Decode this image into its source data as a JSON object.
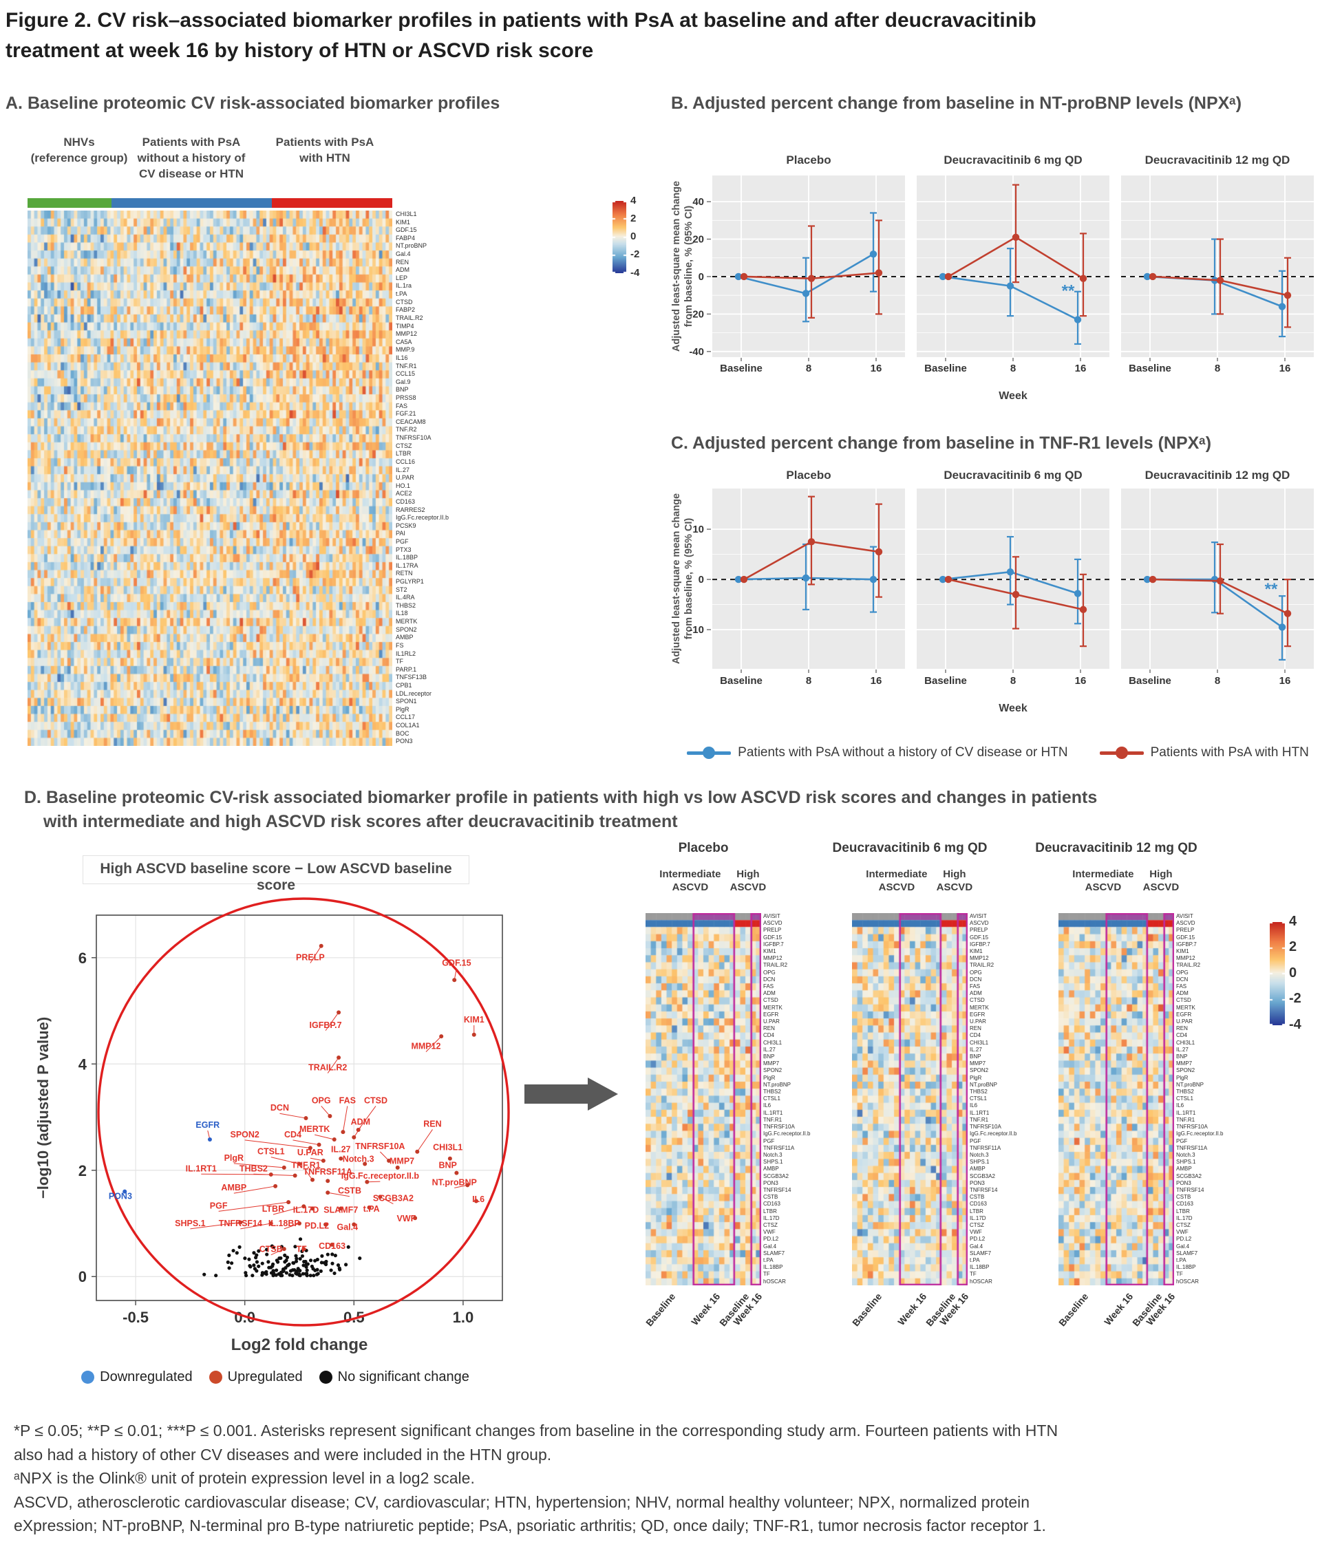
{
  "figure": {
    "title_line1": "Figure 2. CV risk–associated biomarker profiles in patients with PsA at baseline and after deucravacitinib",
    "title_line2": "treatment at week 16 by history of HTN or ASCVD risk score"
  },
  "panel_a": {
    "title": "A. Baseline proteomic CV risk-associated biomarker profiles",
    "groups": [
      {
        "label_lines": [
          "NHVs",
          "(reference group)"
        ],
        "color": "#56a73c",
        "frac": 0.23,
        "bias": -0.3
      },
      {
        "label_lines": [
          "Patients with PsA",
          "without a history of",
          "CV disease or HTN"
        ],
        "color": "#3c79b6",
        "frac": 0.44,
        "bias": 0.0
      },
      {
        "label_lines": [
          "Patients with PsA",
          "with HTN"
        ],
        "color": "#da231e",
        "frac": 0.33,
        "bias": 0.45
      }
    ],
    "n_cols": 110,
    "row_labels": [
      "CHI3L1",
      "KIM1",
      "GDF.15",
      "FABP4",
      "NT.proBNP",
      "Gal.4",
      "REN",
      "ADM",
      "LEP",
      "IL.1ra",
      "t.PA",
      "CTSD",
      "FABP2",
      "TRAIL.R2",
      "TIMP4",
      "MMP12",
      "CA5A",
      "MMP.9",
      "IL16",
      "TNF.R1",
      "CCL15",
      "Gal.9",
      "BNP",
      "PRSS8",
      "FAS",
      "FGF.21",
      "CEACAM8",
      "TNF.R2",
      "TNFRSF10A",
      "CTSZ",
      "LTBR",
      "CCL16",
      "IL.27",
      "U.PAR",
      "HO.1",
      "ACE2",
      "CD163",
      "RARRES2",
      "IgG.Fc.receptor.II.b",
      "PCSK9",
      "PAI",
      "PGF",
      "PTX3",
      "IL.18BP",
      "IL.17RA",
      "RETN",
      "PGLYRP1",
      "ST2",
      "IL.4RA",
      "THBS2",
      "IL18",
      "MERTK",
      "SPON2",
      "AMBP",
      "FS",
      "IL1RL2",
      "TF",
      "PARP.1",
      "TNFSF13B",
      "CPB1",
      "LDL.receptor",
      "SPON1",
      "PlgR",
      "CCL17",
      "COL1A1",
      "BOC",
      "PON3"
    ],
    "colorbar_ticks": [
      "4",
      "2",
      "0",
      "-2",
      "-4"
    ]
  },
  "chart_data": [
    {
      "id": "panel_b",
      "type": "line",
      "title": "B. Adjusted percent change from baseline in NT-proBNP levels (NPXᵃ)",
      "facets": [
        "Placebo",
        "Deucravacitinib 6 mg QD",
        "Deucravacitinib 12 mg QD"
      ],
      "x_categories": [
        "Baseline",
        "8",
        "16"
      ],
      "xlabel": "Week",
      "ylabel_lines": [
        "Adjusted least-square mean change",
        "from baseline, % (95% CI)"
      ],
      "ylim": [
        -43,
        54
      ],
      "yticks": [
        40,
        20,
        0,
        -20,
        -40
      ],
      "series": [
        {
          "name": "Patients with PsA without a history of CV disease or HTN",
          "color": "#3f8ec9",
          "facets": [
            {
              "y": [
                0,
                -9,
                12
              ],
              "lo": [
                0,
                -24,
                -8
              ],
              "hi": [
                0,
                10,
                34
              ]
            },
            {
              "y": [
                0,
                -5,
                -23
              ],
              "lo": [
                0,
                -21,
                -36
              ],
              "hi": [
                0,
                15,
                -8
              ]
            },
            {
              "y": [
                0,
                -2,
                -16
              ],
              "lo": [
                0,
                -20,
                -32
              ],
              "hi": [
                0,
                20,
                3
              ]
            }
          ]
        },
        {
          "name": "Patients with PsA with HTN",
          "color": "#c1402f",
          "facets": [
            {
              "y": [
                0,
                -1,
                2
              ],
              "lo": [
                0,
                -22,
                -20
              ],
              "hi": [
                0,
                27,
                30
              ]
            },
            {
              "y": [
                0,
                21,
                -1
              ],
              "lo": [
                0,
                -3,
                -21
              ],
              "hi": [
                0,
                49,
                23
              ]
            },
            {
              "y": [
                0,
                -2,
                -10
              ],
              "lo": [
                0,
                -20,
                -27
              ],
              "hi": [
                0,
                20,
                10
              ]
            }
          ]
        }
      ],
      "annotations": [
        {
          "facet": 1,
          "xi": 2,
          "y": -10.5,
          "dx": -18,
          "text": "**",
          "color": "#3f8ec9"
        }
      ]
    },
    {
      "id": "panel_c",
      "type": "line",
      "title": "C. Adjusted percent change from baseline in TNF-R1 levels (NPXᵃ)",
      "facets": [
        "Placebo",
        "Deucravacitinib 6 mg QD",
        "Deucravacitinib 12 mg QD"
      ],
      "x_categories": [
        "Baseline",
        "8",
        "16"
      ],
      "xlabel": "Week",
      "ylabel_lines": [
        "Adjusted least-square mean change",
        "from baseline, % (95% CI)"
      ],
      "ylim": [
        -17.8,
        18.1
      ],
      "yticks": [
        10,
        0,
        -10
      ],
      "series": [
        {
          "name": "Patients with PsA without a history of CV disease or HTN",
          "color": "#3f8ec9",
          "facets": [
            {
              "y": [
                0,
                0.3,
                0
              ],
              "lo": [
                0,
                -6,
                -6.5
              ],
              "hi": [
                0,
                7,
                6.5
              ]
            },
            {
              "y": [
                0,
                1.5,
                -2.8
              ],
              "lo": [
                0,
                -5,
                -8.8
              ],
              "hi": [
                0,
                8.5,
                4
              ]
            },
            {
              "y": [
                0,
                0,
                -9.5
              ],
              "lo": [
                0,
                -6.6,
                -16
              ],
              "hi": [
                0,
                7.4,
                -3.3
              ]
            }
          ]
        },
        {
          "name": "Patients with PsA with HTN",
          "color": "#c1402f",
          "facets": [
            {
              "y": [
                0,
                7.5,
                5.5
              ],
              "lo": [
                0,
                -1,
                -3.5
              ],
              "hi": [
                0,
                16.5,
                15
              ]
            },
            {
              "y": [
                0,
                -3,
                -6
              ],
              "lo": [
                0,
                -9.8,
                -13.3
              ],
              "hi": [
                0,
                4.5,
                1
              ]
            },
            {
              "y": [
                0,
                -0.3,
                -6.8
              ],
              "lo": [
                0,
                -6.8,
                -13.3
              ],
              "hi": [
                0,
                7,
                0
              ]
            }
          ]
        }
      ],
      "annotations": [
        {
          "facet": 2,
          "xi": 2,
          "y": -3.0,
          "dx": -20,
          "text": "**",
          "color": "#3f8ec9"
        }
      ]
    },
    {
      "id": "volcano",
      "type": "scatter",
      "title": "High ASCVD baseline score − Low ASCVD baseline score",
      "xlabel": "Log2 fold change",
      "ylabel": "−log10 (adjusted P value)",
      "xlim": [
        -0.68,
        1.18
      ],
      "ylim": [
        -0.45,
        6.8
      ],
      "xticks": [
        "-0.5",
        "0.0",
        "0.5",
        "1.0"
      ],
      "xtick_vals": [
        -0.5,
        0.0,
        0.5,
        1.0
      ],
      "yticks": [
        "0",
        "2",
        "4",
        "6"
      ],
      "ytick_vals": [
        0,
        2,
        4,
        6
      ],
      "legend": [
        {
          "label": "Downregulated",
          "color": "#4a90d9"
        },
        {
          "label": "Upregulated",
          "color": "#cc4a2a"
        },
        {
          "label": "No significant change",
          "color": "#111111"
        }
      ],
      "n_background": 135,
      "points": [
        {
          "n": "PRELP",
          "x": 0.35,
          "y": 6.22,
          "lx": 0.3,
          "ly": 5.95,
          "g": "up"
        },
        {
          "n": "GDF.15",
          "x": 0.96,
          "y": 5.58,
          "lx": 0.97,
          "ly": 5.85,
          "g": "up"
        },
        {
          "n": "IGFBP.7",
          "x": 0.43,
          "y": 4.97,
          "lx": 0.37,
          "ly": 4.68,
          "g": "up"
        },
        {
          "n": "KIM1",
          "x": 1.05,
          "y": 4.55,
          "lx": 1.05,
          "ly": 4.78,
          "g": "up"
        },
        {
          "n": "MMP12",
          "x": 0.9,
          "y": 4.52,
          "lx": 0.83,
          "ly": 4.28,
          "g": "up"
        },
        {
          "n": "TRAIL.R2",
          "x": 0.43,
          "y": 4.12,
          "lx": 0.38,
          "ly": 3.88,
          "g": "up"
        },
        {
          "n": "DCN",
          "x": 0.28,
          "y": 2.98,
          "lx": 0.16,
          "ly": 3.12,
          "g": "up"
        },
        {
          "n": "OPG",
          "x": 0.39,
          "y": 3.02,
          "lx": 0.35,
          "ly": 3.26,
          "g": "up"
        },
        {
          "n": "FAS",
          "x": 0.45,
          "y": 2.72,
          "lx": 0.47,
          "ly": 3.26,
          "g": "up"
        },
        {
          "n": "CTSD",
          "x": 0.52,
          "y": 2.76,
          "lx": 0.6,
          "ly": 3.26,
          "g": "up"
        },
        {
          "n": "ADM",
          "x": 0.5,
          "y": 2.62,
          "lx": 0.53,
          "ly": 2.86,
          "g": "up"
        },
        {
          "n": "MERTK",
          "x": 0.41,
          "y": 2.58,
          "lx": 0.32,
          "ly": 2.72,
          "g": "up"
        },
        {
          "n": "REN",
          "x": 0.79,
          "y": 2.35,
          "lx": 0.86,
          "ly": 2.82,
          "g": "up"
        },
        {
          "n": "EGFR",
          "x": -0.16,
          "y": 2.58,
          "lx": -0.17,
          "ly": 2.8,
          "g": "down"
        },
        {
          "n": "SPON2",
          "x": 0.3,
          "y": 2.42,
          "lx": 0.0,
          "ly": 2.62,
          "g": "up"
        },
        {
          "n": "CD4",
          "x": 0.34,
          "y": 2.48,
          "lx": 0.22,
          "ly": 2.62,
          "g": "up"
        },
        {
          "n": "TNFRSF10A",
          "x": 0.66,
          "y": 2.18,
          "lx": 0.62,
          "ly": 2.4,
          "g": "up"
        },
        {
          "n": "CHI3L1",
          "x": 0.94,
          "y": 2.22,
          "lx": 0.93,
          "ly": 2.38,
          "g": "up"
        },
        {
          "n": "IL.27",
          "x": 0.44,
          "y": 2.22,
          "lx": 0.44,
          "ly": 2.34,
          "g": "up"
        },
        {
          "n": "U.PAR",
          "x": 0.36,
          "y": 2.18,
          "lx": 0.3,
          "ly": 2.28,
          "g": "up"
        },
        {
          "n": "CTSL1",
          "x": 0.25,
          "y": 2.12,
          "lx": 0.12,
          "ly": 2.3,
          "g": "up"
        },
        {
          "n": "PlgR",
          "x": 0.18,
          "y": 2.05,
          "lx": -0.05,
          "ly": 2.18,
          "g": "up"
        },
        {
          "n": "Notch.3",
          "x": 0.55,
          "y": 2.12,
          "lx": 0.52,
          "ly": 2.16,
          "g": "up"
        },
        {
          "n": "MMP7",
          "x": 0.7,
          "y": 2.05,
          "lx": 0.72,
          "ly": 2.12,
          "g": "up"
        },
        {
          "n": "BNP",
          "x": 0.97,
          "y": 1.95,
          "lx": 0.93,
          "ly": 2.04,
          "g": "up"
        },
        {
          "n": "IL.1RT1",
          "x": 0.12,
          "y": 1.92,
          "lx": -0.2,
          "ly": 1.98,
          "g": "up"
        },
        {
          "n": "THBS2",
          "x": 0.23,
          "y": 1.9,
          "lx": 0.04,
          "ly": 1.98,
          "g": "up"
        },
        {
          "n": "TNF.R1",
          "x": 0.31,
          "y": 1.82,
          "lx": 0.28,
          "ly": 2.04,
          "g": "up"
        },
        {
          "n": "TNFRSF11A",
          "x": 0.38,
          "y": 1.8,
          "lx": 0.38,
          "ly": 1.92,
          "g": "up"
        },
        {
          "n": "IgG.Fc.receptor.II.b",
          "x": 0.56,
          "y": 1.78,
          "lx": 0.62,
          "ly": 1.84,
          "g": "up"
        },
        {
          "n": "NT.proBNP",
          "x": 1.02,
          "y": 1.72,
          "lx": 0.96,
          "ly": 1.72,
          "g": "up"
        },
        {
          "n": "AMBP",
          "x": 0.14,
          "y": 1.7,
          "lx": -0.05,
          "ly": 1.62,
          "g": "up"
        },
        {
          "n": "CSTB",
          "x": 0.38,
          "y": 1.58,
          "lx": 0.48,
          "ly": 1.56,
          "g": "up"
        },
        {
          "n": "SCGB3A2",
          "x": 0.62,
          "y": 1.5,
          "lx": 0.68,
          "ly": 1.42,
          "g": "up"
        },
        {
          "n": "IL6",
          "x": 1.06,
          "y": 1.42,
          "lx": 1.07,
          "ly": 1.4,
          "g": "up"
        },
        {
          "n": "PON3",
          "x": -0.55,
          "y": 1.6,
          "lx": -0.57,
          "ly": 1.46,
          "g": "down"
        },
        {
          "n": "PGF",
          "x": 0.2,
          "y": 1.4,
          "lx": -0.12,
          "ly": 1.28,
          "g": "up"
        },
        {
          "n": "LTBR",
          "x": 0.27,
          "y": 1.32,
          "lx": 0.13,
          "ly": 1.22,
          "g": "up"
        },
        {
          "n": "IL.17D",
          "x": 0.31,
          "y": 1.28,
          "lx": 0.28,
          "ly": 1.2,
          "g": "up"
        },
        {
          "n": "SLAMF7",
          "x": 0.44,
          "y": 1.28,
          "lx": 0.44,
          "ly": 1.2,
          "g": "up"
        },
        {
          "n": "t.PA",
          "x": 0.57,
          "y": 1.3,
          "lx": 0.58,
          "ly": 1.22,
          "g": "up"
        },
        {
          "n": "VWF",
          "x": 0.78,
          "y": 1.1,
          "lx": 0.74,
          "ly": 1.04,
          "g": "up"
        },
        {
          "n": "SHPS.1",
          "x": -0.02,
          "y": 1.02,
          "lx": -0.25,
          "ly": 0.95,
          "g": "up"
        },
        {
          "n": "TNFRSF14",
          "x": 0.12,
          "y": 1.0,
          "lx": -0.02,
          "ly": 0.95,
          "g": "up"
        },
        {
          "n": "IL.18BP",
          "x": 0.25,
          "y": 1.0,
          "lx": 0.18,
          "ly": 0.95,
          "g": "up"
        },
        {
          "n": "PD.L2",
          "x": 0.37,
          "y": 0.98,
          "lx": 0.33,
          "ly": 0.9,
          "g": "up"
        },
        {
          "n": "Gal.4",
          "x": 0.5,
          "y": 0.98,
          "lx": 0.47,
          "ly": 0.88,
          "g": "up"
        },
        {
          "n": "CD163",
          "x": 0.4,
          "y": 0.6,
          "lx": 0.4,
          "ly": 0.52,
          "g": "up"
        },
        {
          "n": "CTSB",
          "x": 0.18,
          "y": 0.52,
          "lx": 0.12,
          "ly": 0.46,
          "g": "up"
        },
        {
          "n": "TF",
          "x": 0.27,
          "y": 0.52,
          "lx": 0.26,
          "ly": 0.46,
          "g": "up"
        }
      ]
    }
  ],
  "bc_legend": [
    {
      "label": "Patients with PsA without a history of CV disease or HTN",
      "color": "#3f8ec9"
    },
    {
      "label": "Patients with PsA with HTN",
      "color": "#c1402f"
    }
  ],
  "panel_d": {
    "title_line1": "D. Baseline proteomic CV-risk associated biomarker profile in patients with high vs low ASCVD risk scores and changes in patients",
    "title_line2": "with intermediate and high ASCVD risk scores after deucravacitinib treatment",
    "heatmap_titles": [
      "Placebo",
      "Deucravacitinib 6 mg QD",
      "Deucravacitinib 12 mg QD"
    ],
    "subgroup_labels": [
      {
        "lines": [
          "Intermediate",
          "ASCVD"
        ]
      },
      {
        "lines": [
          "High",
          "ASCVD"
        ]
      }
    ],
    "annotation_rows": [
      "AVISIT",
      "ASCVD"
    ],
    "row_labels": [
      "PRELP",
      "GDF.15",
      "IGFBP.7",
      "KIM1",
      "MMP12",
      "TRAIL.R2",
      "OPG",
      "DCN",
      "FAS",
      "ADM",
      "CTSD",
      "MERTK",
      "EGFR",
      "U.PAR",
      "REN",
      "CD4",
      "CHI3L1",
      "IL.27",
      "BNP",
      "MMP7",
      "SPON2",
      "PlgR",
      "NT.proBNP",
      "THBS2",
      "CTSL1",
      "IL6",
      "IL.1RT1",
      "TNF.R1",
      "TNFRSF10A",
      "IgG.Fc.receptor.II.b",
      "PGF",
      "TNFRSF11A",
      "Notch.3",
      "SHPS.1",
      "AMBP",
      "SCGB3A2",
      "PON3",
      "TNFRSF14",
      "CSTB",
      "CD163",
      "LTBR",
      "IL.17D",
      "CTSZ",
      "VWF",
      "PD.L2",
      "Gal.4",
      "SLAMF7",
      "t.PA",
      "IL.18BP",
      "TF",
      "hOSCAR"
    ],
    "x_labels": [
      "Baseline",
      "Week 16",
      "Baseline",
      "Week 16"
    ],
    "cols": {
      "int_baseline": 9,
      "int_week16": 8,
      "high_baseline": 3,
      "high_week16": 2
    },
    "avisit_colors": {
      "baseline": "#9b9b9b",
      "week16": "#9a50a0"
    },
    "ascvd_colors": {
      "intermediate": "#3c79b6",
      "high": "#d9241f"
    },
    "highlight_color": "#bf2a9d",
    "colorbar_ticks": [
      "4",
      "2",
      "0",
      "-2",
      "-4"
    ]
  },
  "footnotes": {
    "line1": "*P ≤ 0.05; **P ≤ 0.01; ***P ≤ 0.001. Asterisks represent significant changes from baseline in the corresponding study arm. Fourteen patients with HTN",
    "line2": "also had a history of other CV diseases and were included in the HTN group.",
    "line3": "ᵃNPX is the Olink® unit of protein expression level in a log2 scale.",
    "line4": "ASCVD, atherosclerotic cardiovascular disease; CV, cardiovascular; HTN, hypertension; NHV, normal healthy volunteer; NPX, normalized protein",
    "line5": "eXpression; NT-proBNP, N-terminal pro B-type natriuretic peptide; PsA, psoriatic arthritis; QD, once daily; TNF-R1, tumor necrosis factor receptor 1."
  }
}
